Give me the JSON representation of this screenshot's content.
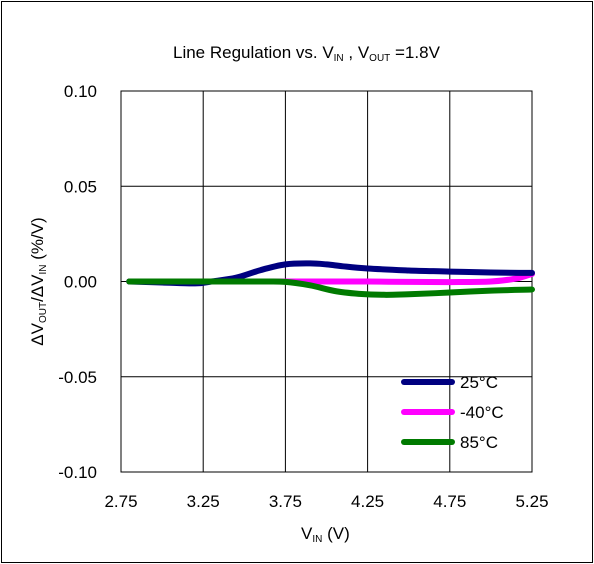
{
  "chart_data": {
    "type": "line",
    "title_parts": [
      "Line Regulation  vs. V",
      "IN",
      " , V",
      "OUT",
      "  =1.8V"
    ],
    "xlabel_parts": [
      "V",
      "IN",
      " (V)"
    ],
    "ylabel_parts": [
      "ΔV",
      "OUT",
      "/ΔV",
      "IN",
      " (%/V)"
    ],
    "x_ticks": [
      "2.75",
      "3.25",
      "3.75",
      "4.25",
      "4.75",
      "5.25"
    ],
    "y_ticks": [
      "0.10",
      "0.05",
      "0.00",
      "-0.05",
      "-0.10"
    ],
    "xlim": [
      2.75,
      5.25
    ],
    "ylim": [
      -0.1,
      0.1
    ],
    "grid": true,
    "legend_position": "bottom-right",
    "series": [
      {
        "name": "25°C",
        "color": "#000080",
        "x": [
          2.8,
          3.0,
          3.2,
          3.3,
          3.45,
          3.6,
          3.75,
          3.9,
          4.0,
          4.1,
          4.25,
          4.5,
          4.75,
          5.0,
          5.25
        ],
        "y": [
          0.0,
          -0.0005,
          -0.001,
          0.0,
          0.002,
          0.006,
          0.009,
          0.0095,
          0.009,
          0.008,
          0.0068,
          0.0058,
          0.0052,
          0.0047,
          0.0045
        ]
      },
      {
        "name": "-40°C",
        "color": "#ff00ff",
        "x": [
          2.8,
          3.25,
          3.75,
          4.0,
          4.25,
          4.5,
          4.75,
          5.0,
          5.15,
          5.25
        ],
        "y": [
          0.0,
          0.0,
          0.0,
          0.0,
          0.0,
          -0.0002,
          -0.0003,
          0.0,
          0.0015,
          0.004
        ]
      },
      {
        "name": "85°C",
        "color": "#007a00",
        "x": [
          2.8,
          3.25,
          3.6,
          3.75,
          3.9,
          4.05,
          4.2,
          4.35,
          4.5,
          4.75,
          5.0,
          5.25
        ],
        "y": [
          0.0,
          0.0,
          0.0,
          -0.0002,
          -0.002,
          -0.005,
          -0.0065,
          -0.007,
          -0.0067,
          -0.0058,
          -0.0048,
          -0.0042
        ]
      }
    ]
  }
}
